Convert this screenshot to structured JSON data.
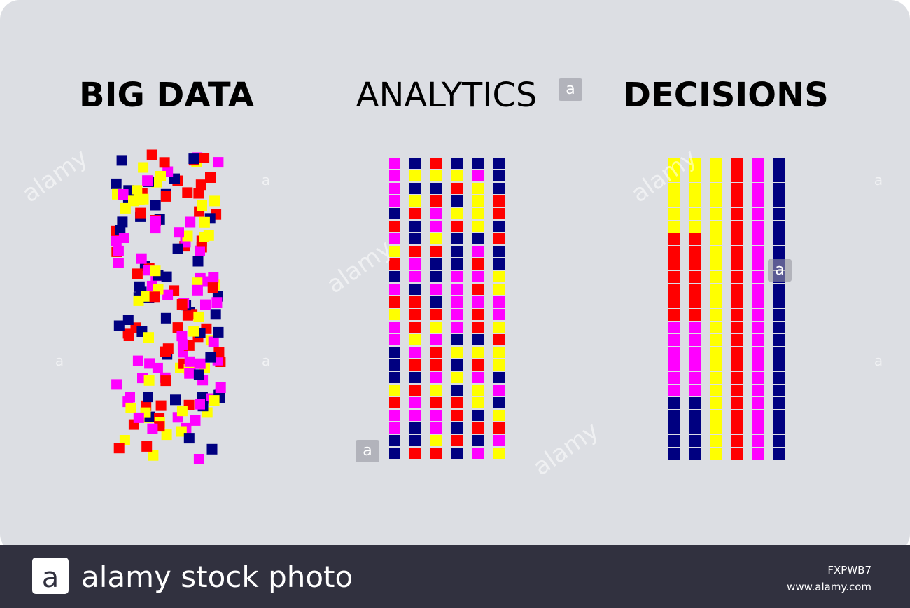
{
  "titles": {
    "big_data": "BIG DATA",
    "analytics": "ANALYTICS",
    "decisions": "DECISIONS"
  },
  "watermark": {
    "word": "alamy",
    "letter": "a"
  },
  "footer": {
    "logo_letter": "a",
    "brand": "alamy stock photo",
    "image_id": "FXPWB7",
    "url": "www.alamy.com"
  }
}
